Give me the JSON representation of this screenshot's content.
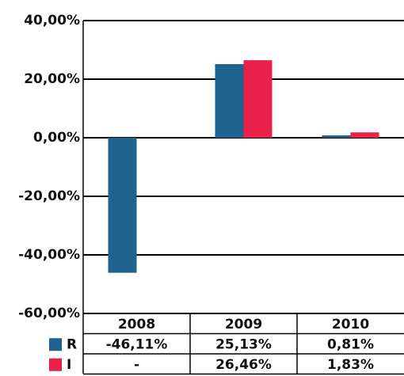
{
  "chart_data": {
    "type": "bar",
    "categories": [
      "2008",
      "2009",
      "2010"
    ],
    "series": [
      {
        "name": "R",
        "color": "#1f6390",
        "values": [
          -46.11,
          25.13,
          0.81
        ],
        "value_labels": [
          "-46,11%",
          "25,13%",
          "0,81%"
        ]
      },
      {
        "name": "I",
        "color": "#e8204a",
        "values": [
          null,
          26.46,
          1.83
        ],
        "value_labels": [
          "-",
          "26,46%",
          "1,83%"
        ]
      }
    ],
    "ylim": [
      -60,
      40
    ],
    "yticks": [
      {
        "value": -60,
        "label": "-60,00%"
      },
      {
        "value": -40,
        "label": "-40,00%"
      },
      {
        "value": -20,
        "label": "-20,00%"
      },
      {
        "value": 0,
        "label": "0,00%"
      },
      {
        "value": 20,
        "label": "20,00%"
      },
      {
        "value": 40,
        "label": "40,00%"
      }
    ],
    "grid": true
  }
}
